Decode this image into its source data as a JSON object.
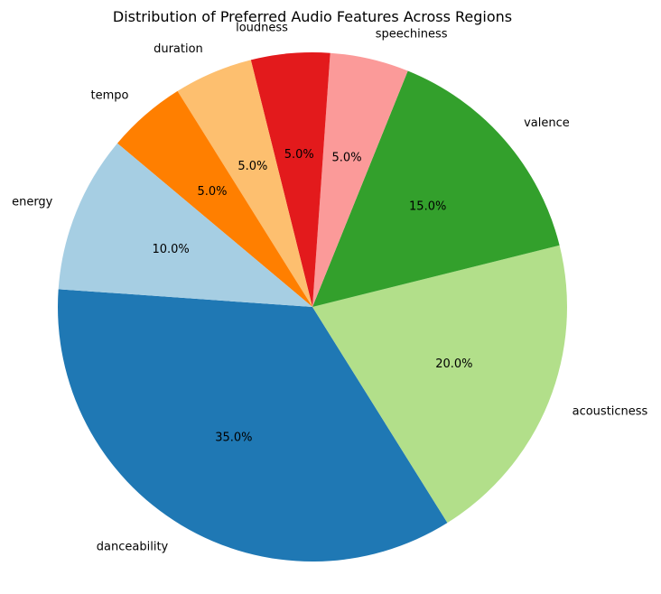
{
  "chart_data": {
    "type": "pie",
    "title": "Distribution of Preferred Audio Features Across Regions",
    "categories": [
      "danceability",
      "acousticness",
      "valence",
      "speechiness",
      "loudness",
      "duration",
      "tempo",
      "energy"
    ],
    "values": [
      35,
      20,
      15,
      5,
      5,
      5,
      5,
      10
    ],
    "value_labels": [
      "35.0%",
      "20.0%",
      "15.0%",
      "5.0%",
      "5.0%",
      "5.0%",
      "5.0%",
      "10.0%"
    ],
    "colors": [
      "#1f78b4",
      "#b2df8a",
      "#33a02c",
      "#fb9a99",
      "#e31a1c",
      "#fdbf6f",
      "#ff7f00",
      "#a6cee3"
    ],
    "start_angle_deg": 176,
    "direction": "counterclockwise"
  }
}
